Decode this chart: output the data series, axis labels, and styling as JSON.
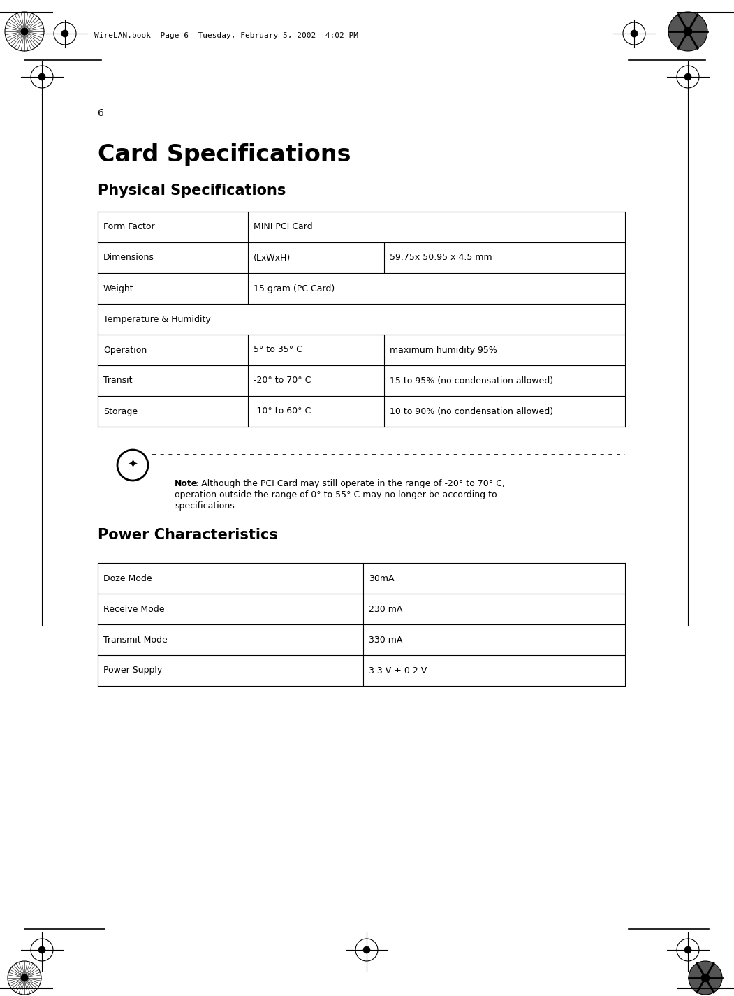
{
  "page_number": "6",
  "header_text": "WireLAN.book  Page 6  Tuesday, February 5, 2002  4:02 PM",
  "title": "Card Specifications",
  "section1_title": "Physical Specifications",
  "section2_title": "Power Characteristics",
  "phys_rows": [
    {
      "col1": "Form Factor",
      "col2": "MINI PCI Card",
      "col3": "",
      "span": false
    },
    {
      "col1": "Dimensions",
      "col2": "(LxWxH)",
      "col3": "59.75x 50.95 x 4.5 mm",
      "span": false
    },
    {
      "col1": "Weight",
      "col2": "15 gram (PC Card)",
      "col3": "",
      "span": false
    },
    {
      "col1": "Temperature & Humidity",
      "col2": "",
      "col3": "",
      "span": true
    },
    {
      "col1": "Operation",
      "col2": "5° to 35° C",
      "col3": "maximum humidity 95%",
      "span": false
    },
    {
      "col1": "Transit",
      "col2": "-20° to 70° C",
      "col3": "15 to 95% (no condensation allowed)",
      "span": false
    },
    {
      "col1": "Storage",
      "col2": "-10° to 60° C",
      "col3": "10 to 90% (no condensation allowed)",
      "span": false
    }
  ],
  "note_bold": "Note",
  "note_rest": ": Although the PCI Card may still operate in the range of -20° to 70° C,",
  "note_line2": "operation outside the range of 0° to 55° C may no longer be according to",
  "note_line3": "specifications.",
  "power_rows": [
    {
      "col1": "Doze Mode",
      "col2": "30mA"
    },
    {
      "col1": "Receive Mode",
      "col2": "230 mA"
    },
    {
      "col1": "Transmit Mode",
      "col2": "330 mA"
    },
    {
      "col1": "Power Supply",
      "col2": "3.3 V ± 0.2 V"
    }
  ],
  "bg_color": "#ffffff"
}
